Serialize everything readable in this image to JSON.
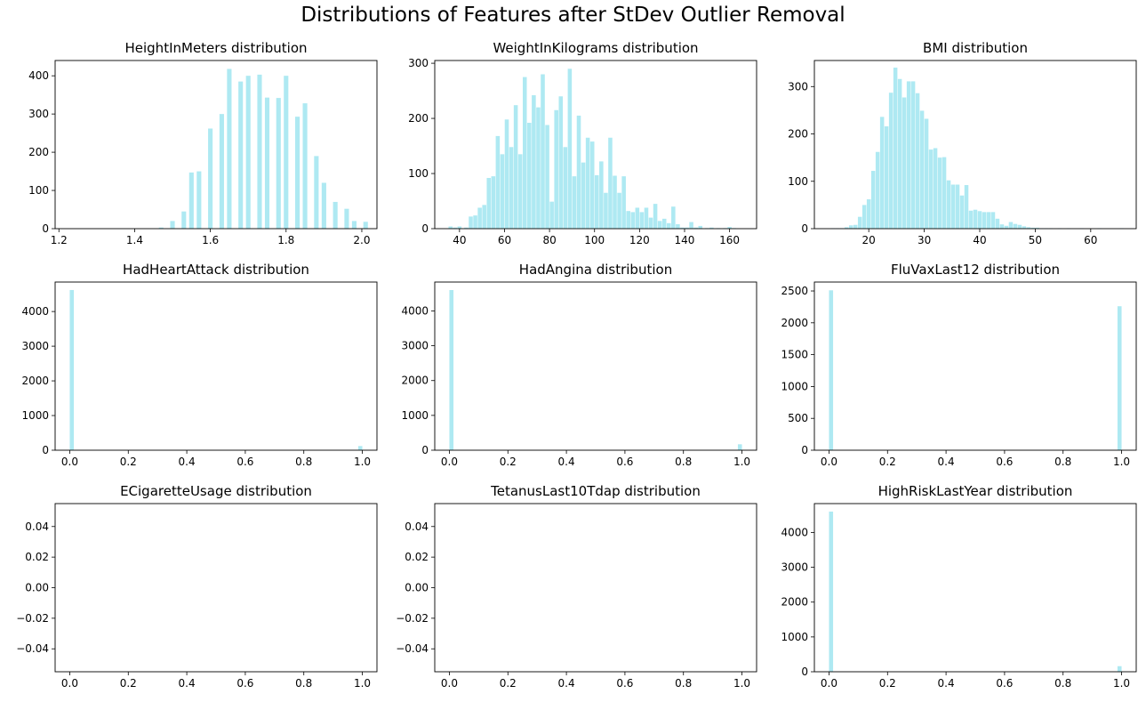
{
  "figure": {
    "title": "Distributions of Features after StDev Outlier Removal",
    "bar_color": "#aee9f2"
  },
  "chart_data": [
    {
      "type": "bar",
      "title": "HeightInMeters distribution",
      "xlim": [
        1.19,
        2.04
      ],
      "ylim": [
        0,
        440
      ],
      "xticks": [
        1.2,
        1.4,
        1.6,
        1.8,
        2.0
      ],
      "xtick_labels": [
        "1.2",
        "1.4",
        "1.6",
        "1.8",
        "2.0"
      ],
      "yticks": [
        0,
        100,
        200,
        300,
        400
      ],
      "ytick_labels": [
        "0",
        "100",
        "200",
        "300",
        "400"
      ],
      "bin_width": 0.012,
      "x": [
        1.47,
        1.5,
        1.53,
        1.55,
        1.57,
        1.6,
        1.63,
        1.65,
        1.68,
        1.7,
        1.73,
        1.75,
        1.78,
        1.8,
        1.83,
        1.85,
        1.88,
        1.9,
        1.93,
        1.96,
        1.98,
        2.01
      ],
      "values": [
        3,
        20,
        45,
        147,
        150,
        262,
        300,
        418,
        385,
        400,
        403,
        343,
        342,
        400,
        293,
        328,
        190,
        120,
        70,
        52,
        20,
        18
      ]
    },
    {
      "type": "bar",
      "title": "WeightInKilograms distribution",
      "xlim": [
        29,
        172
      ],
      "ylim": [
        0,
        305
      ],
      "xticks": [
        40,
        60,
        80,
        100,
        120,
        140,
        160
      ],
      "xtick_labels": [
        "40",
        "60",
        "80",
        "100",
        "120",
        "140",
        "160"
      ],
      "yticks": [
        0,
        100,
        200,
        300
      ],
      "ytick_labels": [
        "0",
        "100",
        "200",
        "300"
      ],
      "bin_width": 1.8,
      "x": [
        36,
        38,
        40,
        43,
        45,
        47,
        49,
        51,
        53,
        55,
        57,
        59,
        61,
        63,
        65,
        67,
        69,
        71,
        73,
        75,
        77,
        79,
        81,
        83,
        85,
        87,
        89,
        91,
        93,
        95,
        97,
        99,
        101,
        103,
        105,
        107,
        109,
        111,
        113,
        115,
        117,
        119,
        121,
        123,
        125,
        127,
        129,
        131,
        133,
        135,
        137,
        139,
        141,
        143,
        145,
        147,
        150,
        152,
        155,
        158,
        160,
        162
      ],
      "values": [
        4,
        2,
        4,
        2,
        22,
        24,
        38,
        43,
        92,
        95,
        168,
        135,
        198,
        148,
        224,
        135,
        275,
        192,
        242,
        220,
        280,
        188,
        49,
        215,
        240,
        148,
        290,
        95,
        205,
        120,
        165,
        158,
        97,
        122,
        65,
        165,
        96,
        65,
        95,
        32,
        30,
        38,
        30,
        38,
        20,
        45,
        14,
        18,
        10,
        40,
        8,
        2,
        2,
        12,
        2,
        5,
        1,
        2,
        1,
        1,
        3,
        1
      ]
    },
    {
      "type": "bar",
      "title": "BMI distribution",
      "xlim": [
        10.2,
        68.2
      ],
      "ylim": [
        0,
        355
      ],
      "xticks": [
        20,
        30,
        40,
        50,
        60
      ],
      "xtick_labels": [
        "20",
        "30",
        "40",
        "50",
        "60"
      ],
      "yticks": [
        0,
        100,
        200,
        300
      ],
      "ytick_labels": [
        "0",
        "100",
        "200",
        "300"
      ],
      "bin_width": 0.72,
      "x": [
        13.6,
        14.4,
        15.2,
        16.0,
        16.8,
        17.6,
        18.4,
        19.2,
        20.0,
        20.8,
        21.6,
        22.4,
        23.2,
        24.0,
        24.8,
        25.6,
        26.4,
        27.2,
        28.0,
        28.8,
        29.6,
        30.4,
        31.2,
        32.0,
        32.8,
        33.6,
        34.4,
        35.2,
        36.0,
        36.8,
        37.6,
        38.4,
        39.2,
        40.0,
        40.8,
        41.6,
        42.4,
        43.2,
        44.0,
        44.8,
        45.6,
        46.4,
        47.2,
        48.0,
        48.8,
        49.6,
        50.4,
        51.2,
        52.0,
        52.8,
        54.4,
        56.0,
        58.4,
        61.6,
        65.6
      ],
      "values": [
        1,
        1,
        1,
        3,
        7,
        8,
        25,
        50,
        62,
        122,
        162,
        236,
        216,
        287,
        340,
        316,
        277,
        311,
        311,
        286,
        249,
        232,
        167,
        170,
        150,
        151,
        102,
        93,
        93,
        70,
        92,
        38,
        40,
        37,
        35,
        35,
        35,
        21,
        9,
        6,
        14,
        10,
        8,
        5,
        3,
        2,
        2,
        1,
        1,
        1,
        1,
        1,
        1,
        1,
        1
      ]
    },
    {
      "type": "bar",
      "title": "HadHeartAttack distribution",
      "xlim": [
        -0.05,
        1.05
      ],
      "ylim": [
        0,
        4850
      ],
      "xticks": [
        0.0,
        0.2,
        0.4,
        0.6,
        0.8,
        1.0
      ],
      "xtick_labels": [
        "0.0",
        "0.2",
        "0.4",
        "0.6",
        "0.8",
        "1.0"
      ],
      "yticks": [
        0,
        1000,
        2000,
        3000,
        4000
      ],
      "ytick_labels": [
        "0",
        "1000",
        "2000",
        "3000",
        "4000"
      ],
      "bin_width": 0.014,
      "x": [
        0.007,
        0.993
      ],
      "values": [
        4620,
        120
      ]
    },
    {
      "type": "bar",
      "title": "HadAngina distribution",
      "xlim": [
        -0.05,
        1.05
      ],
      "ylim": [
        0,
        4830
      ],
      "xticks": [
        0.0,
        0.2,
        0.4,
        0.6,
        0.8,
        1.0
      ],
      "xtick_labels": [
        "0.0",
        "0.2",
        "0.4",
        "0.6",
        "0.8",
        "1.0"
      ],
      "yticks": [
        0,
        1000,
        2000,
        3000,
        4000
      ],
      "ytick_labels": [
        "0",
        "1000",
        "2000",
        "3000",
        "4000"
      ],
      "bin_width": 0.014,
      "x": [
        0.007,
        0.993
      ],
      "values": [
        4600,
        170
      ]
    },
    {
      "type": "bar",
      "title": "FluVaxLast12 distribution",
      "xlim": [
        -0.05,
        1.05
      ],
      "ylim": [
        0,
        2640
      ],
      "xticks": [
        0.0,
        0.2,
        0.4,
        0.6,
        0.8,
        1.0
      ],
      "xtick_labels": [
        "0.0",
        "0.2",
        "0.4",
        "0.6",
        "0.8",
        "1.0"
      ],
      "yticks": [
        0,
        500,
        1000,
        1500,
        2000,
        2500
      ],
      "ytick_labels": [
        "0",
        "500",
        "1000",
        "1500",
        "2000",
        "2500"
      ],
      "bin_width": 0.014,
      "x": [
        0.007,
        0.993
      ],
      "values": [
        2510,
        2260
      ]
    },
    {
      "type": "bar",
      "title": "ECigaretteUsage distribution",
      "xlim": [
        -0.05,
        1.05
      ],
      "ylim": [
        -0.055,
        0.055
      ],
      "xticks": [
        0.0,
        0.2,
        0.4,
        0.6,
        0.8,
        1.0
      ],
      "xtick_labels": [
        "0.0",
        "0.2",
        "0.4",
        "0.6",
        "0.8",
        "1.0"
      ],
      "yticks": [
        -0.04,
        -0.02,
        0.0,
        0.02,
        0.04
      ],
      "ytick_labels": [
        "−0.04",
        "−0.02",
        "0.00",
        "0.02",
        "0.04"
      ],
      "bin_width": 0.014,
      "x": [],
      "values": []
    },
    {
      "type": "bar",
      "title": "TetanusLast10Tdap distribution",
      "xlim": [
        -0.05,
        1.05
      ],
      "ylim": [
        -0.055,
        0.055
      ],
      "xticks": [
        0.0,
        0.2,
        0.4,
        0.6,
        0.8,
        1.0
      ],
      "xtick_labels": [
        "0.0",
        "0.2",
        "0.4",
        "0.6",
        "0.8",
        "1.0"
      ],
      "yticks": [
        -0.04,
        -0.02,
        0.0,
        0.02,
        0.04
      ],
      "ytick_labels": [
        "−0.04",
        "−0.02",
        "0.00",
        "0.02",
        "0.04"
      ],
      "bin_width": 0.014,
      "x": [],
      "values": []
    },
    {
      "type": "bar",
      "title": "HighRiskLastYear distribution",
      "xlim": [
        -0.05,
        1.05
      ],
      "ylim": [
        0,
        4830
      ],
      "xticks": [
        0.0,
        0.2,
        0.4,
        0.6,
        0.8,
        1.0
      ],
      "xtick_labels": [
        "0.0",
        "0.2",
        "0.4",
        "0.6",
        "0.8",
        "1.0"
      ],
      "yticks": [
        0,
        1000,
        2000,
        3000,
        4000
      ],
      "ytick_labels": [
        "0",
        "1000",
        "2000",
        "3000",
        "4000"
      ],
      "bin_width": 0.014,
      "x": [
        0.007,
        0.993
      ],
      "values": [
        4600,
        160
      ]
    }
  ]
}
